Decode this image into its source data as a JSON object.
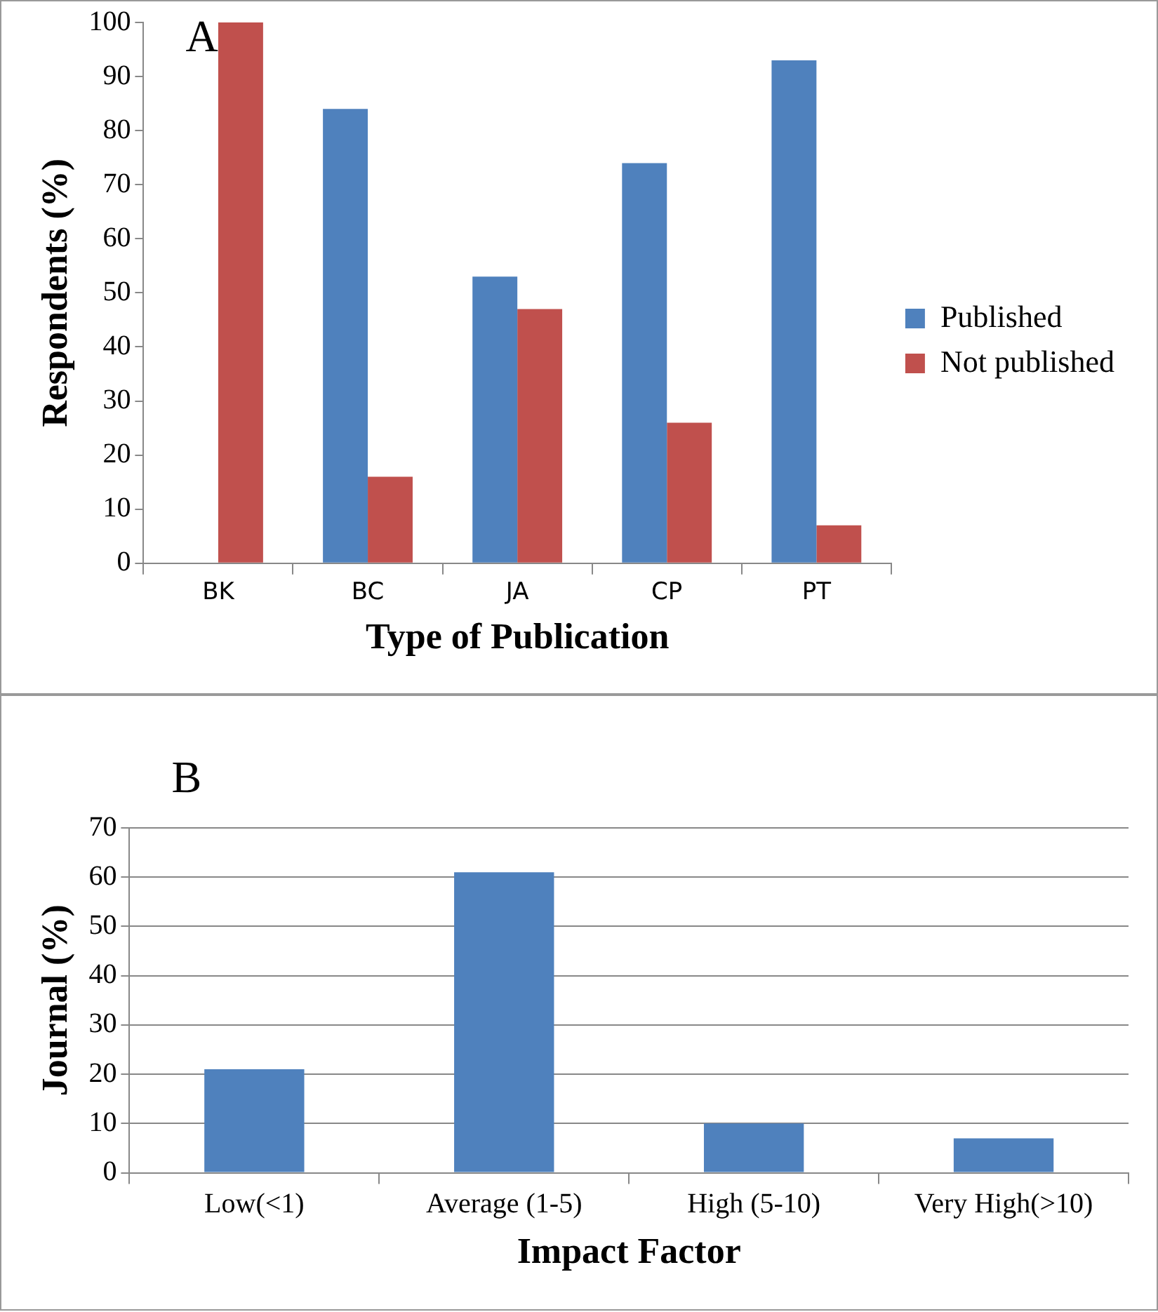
{
  "chart_data": [
    {
      "type": "bar",
      "title": "A",
      "xlabel": "Type of Publication",
      "ylabel": "Respondents (%)",
      "categories": [
        "BK",
        "BC",
        "JA",
        "CP",
        "PT"
      ],
      "series": [
        {
          "name": "Published",
          "color": "#4f81bd",
          "values": [
            0,
            84,
            53,
            74,
            93
          ]
        },
        {
          "name": "Not published",
          "color": "#c0504d",
          "values": [
            100,
            16,
            47,
            26,
            7
          ]
        }
      ],
      "ylim": [
        0,
        100
      ],
      "yticks": [
        0,
        10,
        20,
        30,
        40,
        50,
        60,
        70,
        80,
        90,
        100
      ],
      "grid": false,
      "legend": "right"
    },
    {
      "type": "bar",
      "title": "B",
      "xlabel": "Impact Factor",
      "ylabel": "Journal (%)",
      "categories": [
        "Low(<1)",
        "Average (1-5)",
        "High (5-10)",
        "Very High(>10)"
      ],
      "series": [
        {
          "color": "#4f81bd",
          "values": [
            21,
            61,
            10,
            7
          ]
        }
      ],
      "ylim": [
        0,
        70
      ],
      "yticks": [
        0,
        10,
        20,
        30,
        40,
        50,
        60,
        70
      ],
      "grid": "y",
      "legend": false
    }
  ]
}
